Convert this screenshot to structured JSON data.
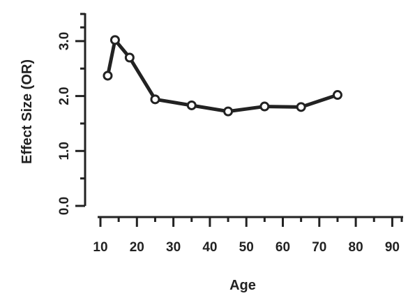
{
  "chart_data": {
    "type": "line",
    "title": "",
    "xlabel": "Age",
    "ylabel": "Effect Size (OR)",
    "xlim": [
      10,
      90
    ],
    "ylim": [
      0.0,
      3.0
    ],
    "x_ticks": [
      10,
      20,
      30,
      40,
      50,
      60,
      70,
      80,
      90
    ],
    "x_tick_labels": [
      "10",
      "20",
      "30",
      "40",
      "50",
      "60",
      "70",
      "80",
      "90"
    ],
    "y_ticks": [
      0.0,
      1.0,
      2.0,
      3.0
    ],
    "y_tick_labels": [
      "0.0",
      "1.0",
      "2.0",
      "3.0"
    ],
    "x_minor_ticks": [
      15,
      25,
      35,
      45,
      55,
      65,
      75,
      85
    ],
    "y_minor_ticks": [
      0.5,
      1.5,
      2.5
    ],
    "grid": false,
    "series": [
      {
        "x": [
          12,
          14,
          18,
          25,
          35,
          45,
          55,
          65,
          75
        ],
        "values": [
          2.37,
          3.02,
          2.7,
          1.94,
          1.83,
          1.72,
          1.81,
          1.8,
          2.02
        ]
      }
    ],
    "colors": {
      "line": "#222222",
      "marker_fill": "#ffffff",
      "text": "#222222"
    }
  }
}
